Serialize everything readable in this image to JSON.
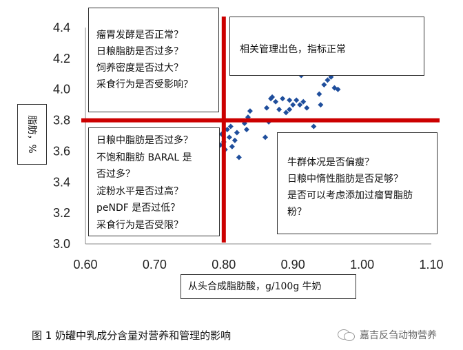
{
  "chart_data": {
    "type": "scatter",
    "title": "",
    "xlabel": "从头合成脂肪酸，g/100g 牛奶",
    "ylabel": "脂肪，%",
    "xlim": [
      0.6,
      1.1
    ],
    "ylim": [
      3.0,
      4.4
    ],
    "x_ticks": [
      "0.60",
      "0.70",
      "0.80",
      "0.90",
      "1.00",
      "1.10"
    ],
    "y_ticks": [
      "3.0",
      "3.2",
      "3.4",
      "3.6",
      "3.8",
      "4.0",
      "4.2",
      "4.4"
    ],
    "threshold_x": 0.8,
    "threshold_y": 3.8,
    "threshold_color": "#cc0000",
    "marker_color": "#1f4e9c",
    "marker_shape": "diamond",
    "points": [
      [
        0.795,
        3.64
      ],
      [
        0.797,
        3.71
      ],
      [
        0.8,
        3.66
      ],
      [
        0.802,
        3.61
      ],
      [
        0.805,
        3.74
      ],
      [
        0.808,
        3.69
      ],
      [
        0.81,
        3.76
      ],
      [
        0.812,
        3.63
      ],
      [
        0.816,
        3.67
      ],
      [
        0.819,
        3.72
      ],
      [
        0.822,
        3.56
      ],
      [
        0.83,
        3.78
      ],
      [
        0.833,
        3.74
      ],
      [
        0.835,
        3.82
      ],
      [
        0.838,
        3.86
      ],
      [
        0.86,
        3.69
      ],
      [
        0.862,
        3.88
      ],
      [
        0.865,
        3.79
      ],
      [
        0.87,
        3.95
      ],
      [
        0.875,
        3.92
      ],
      [
        0.88,
        3.87
      ],
      [
        0.885,
        3.94
      ],
      [
        0.89,
        3.85
      ],
      [
        0.895,
        3.87
      ],
      [
        0.9,
        3.9
      ],
      [
        0.905,
        3.93
      ],
      [
        0.91,
        3.9
      ],
      [
        0.915,
        3.92
      ],
      [
        0.92,
        3.88
      ],
      [
        0.93,
        3.76
      ],
      [
        0.938,
        3.97
      ],
      [
        0.94,
        3.9
      ],
      [
        0.945,
        4.03
      ],
      [
        0.95,
        4.06
      ],
      [
        0.955,
        4.08
      ],
      [
        0.96,
        4.01
      ],
      [
        0.965,
        4.0
      ],
      [
        0.912,
        4.09
      ],
      [
        0.868,
        3.94
      ],
      [
        0.895,
        3.93
      ]
    ]
  },
  "annotations": {
    "top_left": [
      "瘤胃发酵是否正常？",
      "日粮脂肪是否过多？",
      "饲养密度是否过大？",
      "采食行为是否受影响？"
    ],
    "top_right": [
      "相关管理出色，指标正常"
    ],
    "middle_left": [
      "日粮中脂肪是否过多？",
      "不饱和脂肪 BARAL 是",
      "否过多？",
      "淀粉水平是否过高？",
      "peNDF 是否过低？",
      "采食行为是否受限？"
    ],
    "bottom_right": [
      "牛群体况是否偏瘦？",
      "日粮中惰性脂肪是否足够？",
      "是否可以考虑添加过瘤胃脂肪",
      "粉？"
    ]
  },
  "caption": "图 1  奶罐中乳成分含量对营养和管理的影响",
  "watermark": "嘉吉反刍动物营养",
  "watermark_icon": "wechat-icon"
}
